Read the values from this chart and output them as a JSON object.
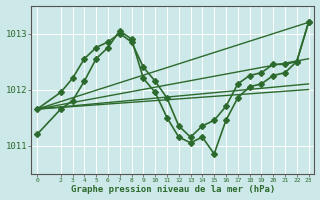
{
  "bg_color": "#cce8e8",
  "line_color": "#2d6a2d",
  "grid_color": "#aad4d4",
  "xlabel": "Graphe pression niveau de la mer (hPa)",
  "ylim": [
    1010.5,
    1013.5
  ],
  "xlim": [
    -0.5,
    23.5
  ],
  "yticks": [
    1011,
    1012,
    1013
  ],
  "xticks": [
    0,
    2,
    3,
    4,
    5,
    6,
    7,
    8,
    9,
    10,
    11,
    12,
    13,
    14,
    15,
    16,
    17,
    18,
    19,
    20,
    21,
    22,
    23
  ],
  "series": [
    {
      "x": [
        0,
        2,
        3,
        4,
        5,
        6,
        7,
        8,
        9,
        10,
        11,
        12,
        13,
        14,
        15,
        16,
        17,
        18,
        19,
        20,
        21,
        22,
        23
      ],
      "y": [
        1011.65,
        1011.95,
        1012.2,
        1012.55,
        1012.75,
        1012.85,
        1013.0,
        1012.85,
        1012.4,
        1012.15,
        1011.85,
        1011.35,
        1011.15,
        1011.35,
        1011.45,
        1011.7,
        1012.1,
        1012.25,
        1012.3,
        1012.45,
        1012.45,
        1012.5,
        1013.2
      ],
      "marker": "D",
      "markersize": 3,
      "linewidth": 1.2,
      "zorder": 5
    },
    {
      "x": [
        0,
        2,
        3,
        4,
        5,
        6,
        7,
        8,
        9,
        10,
        11,
        12,
        13,
        14,
        15,
        16,
        17,
        18,
        19,
        20,
        21,
        22,
        23
      ],
      "y": [
        1011.2,
        1011.65,
        1011.8,
        1012.15,
        1012.55,
        1012.75,
        1013.05,
        1012.9,
        1012.2,
        1011.95,
        1011.5,
        1011.15,
        1011.05,
        1011.15,
        1010.85,
        1011.45,
        1011.85,
        1012.05,
        1012.1,
        1012.25,
        1012.3,
        1012.5,
        1013.2
      ],
      "marker": "D",
      "markersize": 3,
      "linewidth": 1.2,
      "zorder": 5
    },
    {
      "x": [
        0,
        23
      ],
      "y": [
        1011.65,
        1013.2
      ],
      "marker": null,
      "markersize": 0,
      "linewidth": 1.0,
      "zorder": 3
    },
    {
      "x": [
        0,
        23
      ],
      "y": [
        1011.65,
        1012.55
      ],
      "marker": null,
      "markersize": 0,
      "linewidth": 1.0,
      "zorder": 3
    },
    {
      "x": [
        0,
        23
      ],
      "y": [
        1011.65,
        1012.1
      ],
      "marker": null,
      "markersize": 0,
      "linewidth": 1.0,
      "zorder": 3
    },
    {
      "x": [
        0,
        23
      ],
      "y": [
        1011.65,
        1012.0
      ],
      "marker": null,
      "markersize": 0,
      "linewidth": 1.0,
      "zorder": 3
    }
  ]
}
